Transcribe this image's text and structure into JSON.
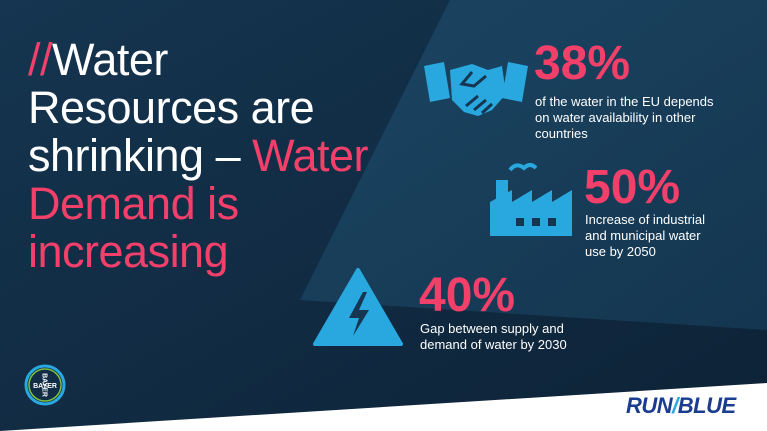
{
  "header": {
    "prefix": "//",
    "title_white": "Water Resources are shrinking –",
    "title_pink": "Water Demand is increasing"
  },
  "stats": [
    {
      "value": "38%",
      "text": "of the water in the EU depends on water availability in other countries"
    },
    {
      "value": "50%",
      "text": "Increase of industrial and municipal water use by 2050"
    },
    {
      "value": "40%",
      "text": "Gap between supply and demand of water by 2030"
    }
  ],
  "brand": {
    "bayer": "BAYER",
    "run": "RUN",
    "blue": "BLUE"
  }
}
